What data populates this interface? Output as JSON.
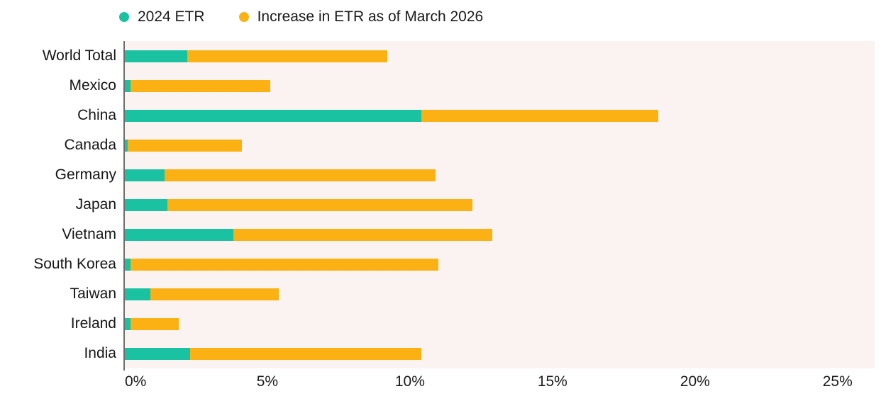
{
  "legend": {
    "items": [
      {
        "label": "2024 ETR",
        "color": "#1BC2A2"
      },
      {
        "label": "Increase in ETR as of March 2026",
        "color": "#FBB014"
      }
    ]
  },
  "chart_data": {
    "type": "bar",
    "orientation": "horizontal",
    "stacked": true,
    "title": "",
    "xlabel": "",
    "ylabel": "",
    "categories": [
      "World Total",
      "Mexico",
      "China",
      "Canada",
      "Germany",
      "Japan",
      "Vietnam",
      "South Korea",
      "Taiwan",
      "Ireland",
      "India"
    ],
    "series": [
      {
        "name": "2024 ETR",
        "color": "#1BC2A2",
        "values": [
          2.2,
          0.2,
          10.4,
          0.1,
          1.4,
          1.5,
          3.8,
          0.2,
          0.9,
          0.2,
          2.3
        ]
      },
      {
        "name": "Increase in ETR as of March 2026",
        "color": "#FBB014",
        "values": [
          7.0,
          4.9,
          8.3,
          4.0,
          9.5,
          10.7,
          9.1,
          10.8,
          4.5,
          1.7,
          8.1
        ]
      }
    ],
    "totals_as_of_march_2026": [
      9.2,
      5.1,
      18.7,
      4.1,
      10.9,
      12.2,
      12.9,
      11.0,
      5.4,
      1.9,
      10.4
    ],
    "x_ticks": [
      "0%",
      "5%",
      "10%",
      "15%",
      "20%",
      "25%"
    ],
    "x_tick_values": [
      0,
      5,
      10,
      15,
      20,
      25
    ],
    "xlim": [
      0,
      26.3
    ],
    "grid": false,
    "legend_position": "top",
    "plot_background": "#FBF3F1",
    "axis_line_color": "#6E6E6E",
    "text_color": "#1A1A1A"
  }
}
